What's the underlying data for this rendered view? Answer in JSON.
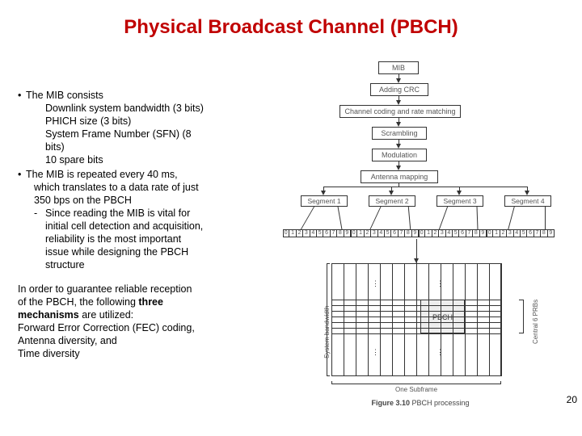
{
  "title": {
    "text": "Physical Broadcast Channel (PBCH)",
    "color": "#c00000",
    "fontsize": 24
  },
  "page_number": 20,
  "bullets": {
    "item1": {
      "lead": "The MIB consists",
      "sub1": "Downlink system bandwidth (3 bits)",
      "sub2": "PHICH size (3 bits)",
      "sub3": "System Frame Number (SFN) (8",
      "sub3b": "bits)",
      "sub4": "10 spare bits"
    },
    "item2": {
      "lead": "The MIB is repeated every 40 ms,",
      "l2": "which translates to a data rate of just",
      "l3": "350 bps on the PBCH",
      "dash": "Since reading the MIB is vital for",
      "dashb": "initial cell detection and acquisition,",
      "dashc": "reliability is the most important",
      "dashd": "issue while designing the PBCH",
      "dashe": "structure"
    }
  },
  "lower": {
    "l1": "In order to guarantee reliable reception",
    "l2a": "of the PBCH, the following ",
    "l2b": "three",
    "l3a": "mechanisms",
    "l3b": " are utilized:",
    "l4": "Forward Error Correction (FEC) coding,",
    "l5": "Antenna diversity, and",
    "l6": "Time diversity"
  },
  "flow": {
    "b1": "MIB",
    "b2": "Adding CRC",
    "b3": "Channel coding and rate matching",
    "b4": "Scrambling",
    "b5": "Modulation",
    "b6": "Antenna mapping",
    "seg1": "Segment 1",
    "seg2": "Segment 2",
    "seg3": "Segment 3",
    "seg4": "Segment 4"
  },
  "grid": {
    "sys_bw": "System bandwidth",
    "central": "Central 6 PRBs",
    "pbch": "PBCH",
    "subframe": "One Subframe"
  },
  "caption": {
    "fig": "Figure 3.10",
    "text": "PBCH processing"
  },
  "colors": {
    "title": "#c00000",
    "line": "#333333",
    "text": "#000000",
    "diagram_text": "#555555",
    "pbch_fill": "#eeeeee"
  }
}
